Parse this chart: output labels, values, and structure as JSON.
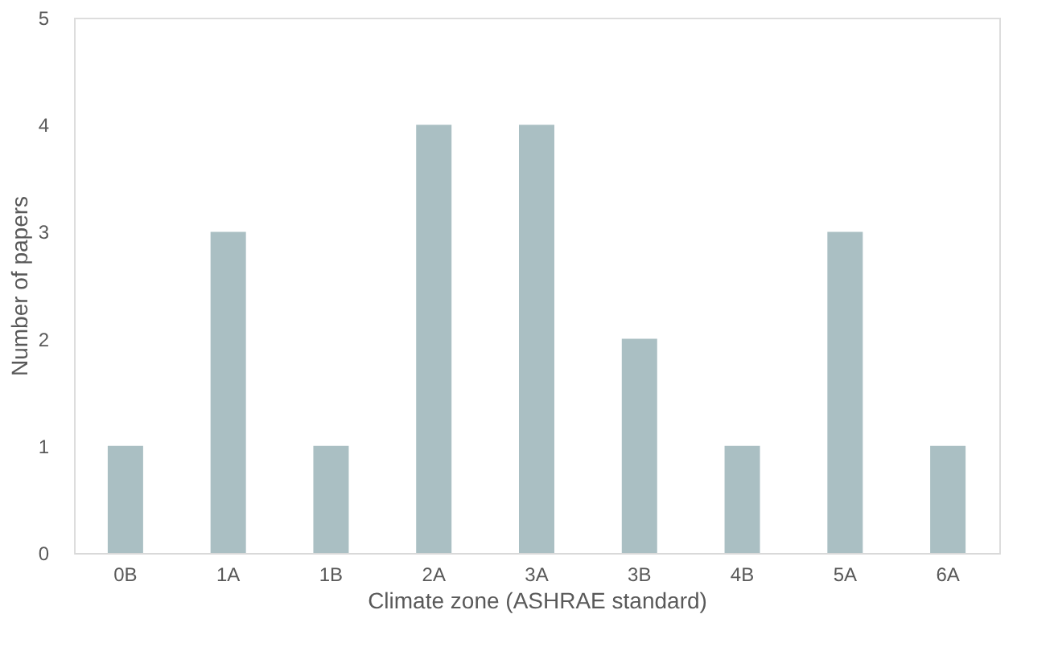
{
  "chart_data": {
    "type": "bar",
    "xlabel": "Climate zone (ASHRAE standard)",
    "ylabel": "Number of papers",
    "categories": [
      "0B",
      "1A",
      "1B",
      "2A",
      "3A",
      "3B",
      "4B",
      "5A",
      "6A"
    ],
    "values": [
      1,
      3,
      1,
      4,
      4,
      2,
      1,
      3,
      1
    ],
    "color": "#aabfc3",
    "ylim": [
      0,
      5
    ],
    "yticks": [
      0,
      1,
      2,
      3,
      4,
      5
    ],
    "grid": false
  }
}
